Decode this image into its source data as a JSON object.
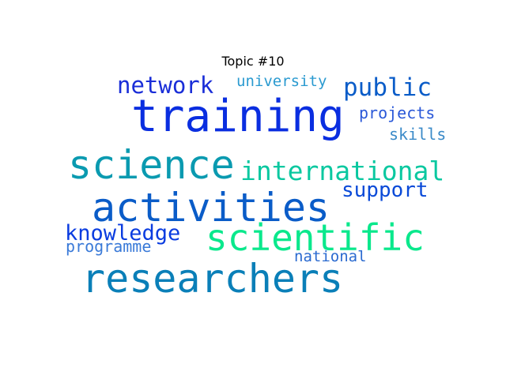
{
  "title": "Topic #10",
  "words": [
    {
      "text": "training",
      "color": "#0a2ee0"
    },
    {
      "text": "researchers",
      "color": "#0a7fb8"
    },
    {
      "text": "activities",
      "color": "#0a5cc8"
    },
    {
      "text": "scientific",
      "color": "#0ae88c"
    },
    {
      "text": "science",
      "color": "#0a9ab0"
    },
    {
      "text": "international",
      "color": "#0ac8a0"
    },
    {
      "text": "public",
      "color": "#0a5cc8"
    },
    {
      "text": "network",
      "color": "#1a2ed8"
    },
    {
      "text": "knowledge",
      "color": "#0a3ce0"
    },
    {
      "text": "support",
      "color": "#0a4ad8"
    },
    {
      "text": "university",
      "color": "#2a9ad0"
    },
    {
      "text": "projects",
      "color": "#2a58d8"
    },
    {
      "text": "skills",
      "color": "#3a8ac8"
    },
    {
      "text": "programme",
      "color": "#3a7ad8"
    },
    {
      "text": "national",
      "color": "#2a6ad0"
    }
  ]
}
